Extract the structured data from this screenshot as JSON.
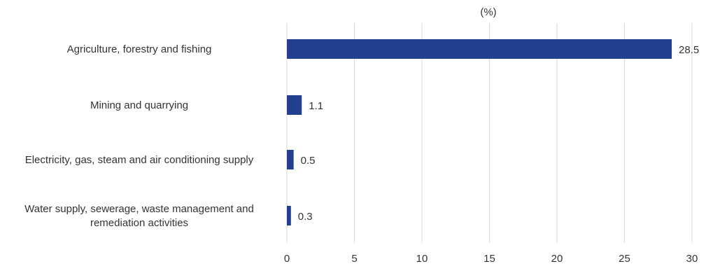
{
  "chart_data": {
    "type": "bar",
    "orientation": "horizontal",
    "unit_label": "(%)",
    "categories": [
      [
        "Agriculture, forestry and fishing"
      ],
      [
        "Mining and quarrying"
      ],
      [
        "Electricity, gas, steam and air conditioning supply"
      ],
      [
        "Water supply, sewerage, waste management and",
        "remediation activities"
      ]
    ],
    "values": [
      28.5,
      1.1,
      0.5,
      0.3
    ],
    "data_labels": [
      "28.5",
      "1.1",
      "0.5",
      "0.3"
    ],
    "x_ticks": [
      "0",
      "5",
      "10",
      "15",
      "20",
      "25",
      "30"
    ],
    "xlim": [
      0,
      30
    ],
    "grid": "vertical",
    "bar_color": "#22408f",
    "grid_color": "#d9d9d9",
    "text_color": "#333333"
  }
}
